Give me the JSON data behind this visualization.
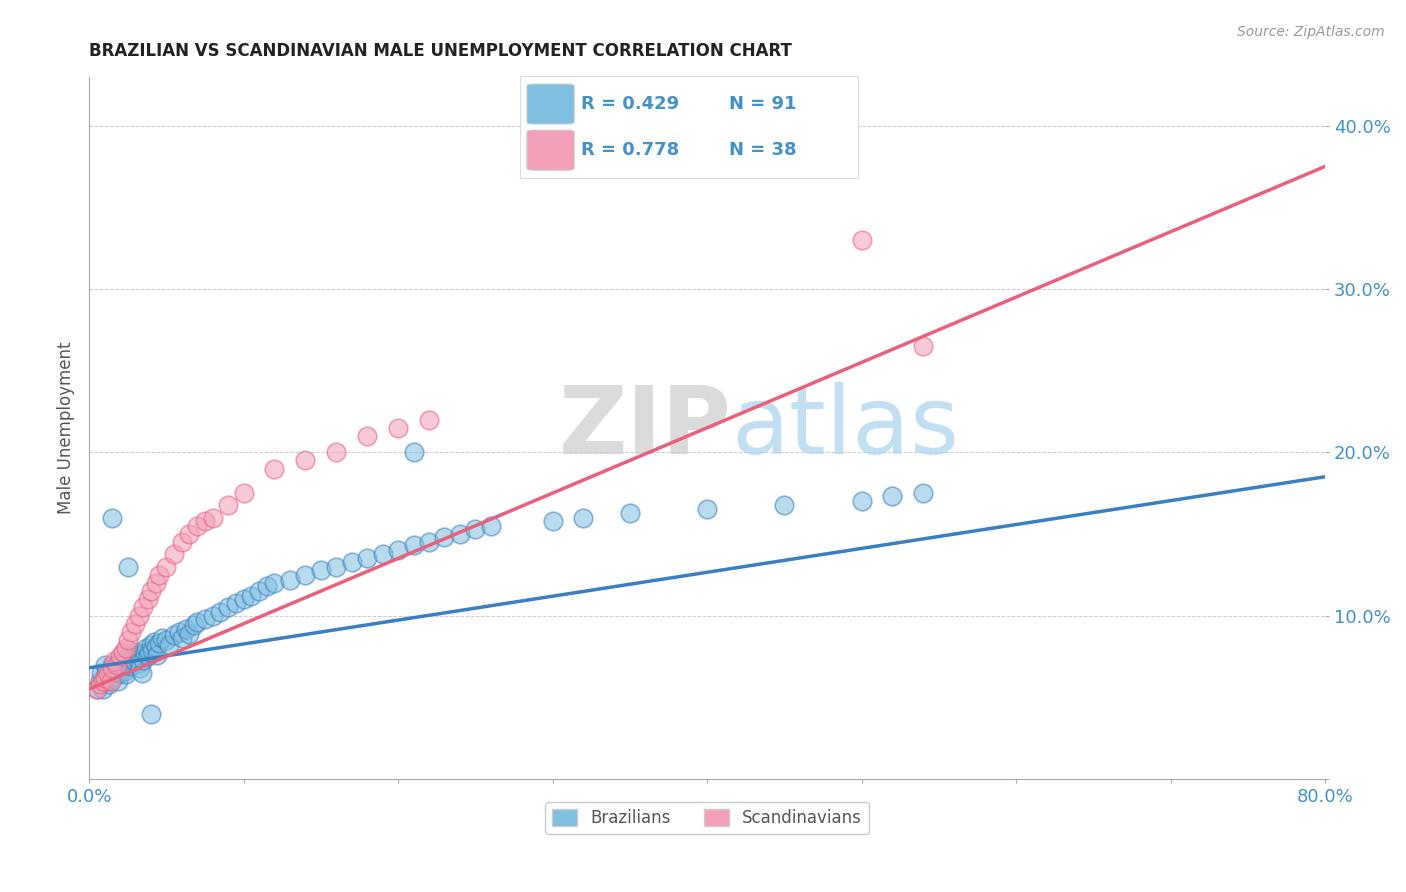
{
  "title": "BRAZILIAN VS SCANDINAVIAN MALE UNEMPLOYMENT CORRELATION CHART",
  "source": "Source: ZipAtlas.com",
  "ylabel": "Male Unemployment",
  "xlim": [
    0.0,
    0.8
  ],
  "ylim": [
    0.0,
    0.43
  ],
  "xticks": [
    0.0,
    0.1,
    0.2,
    0.3,
    0.4,
    0.5,
    0.6,
    0.7,
    0.8
  ],
  "xticklabels": [
    "0.0%",
    "",
    "",
    "",
    "",
    "",
    "",
    "",
    "80.0%"
  ],
  "yticks": [
    0.0,
    0.1,
    0.2,
    0.3,
    0.4
  ],
  "yticklabels": [
    "",
    "10.0%",
    "20.0%",
    "30.0%",
    "40.0%"
  ],
  "blue_color": "#7fbfdf",
  "pink_color": "#f4a0b8",
  "blue_line_color": "#3a7fc1",
  "pink_line_color": "#e8607a",
  "legend_r_blue": "R = 0.429",
  "legend_n_blue": "N = 91",
  "legend_r_pink": "R = 0.778",
  "legend_n_pink": "N = 38",
  "watermark_zip": "ZIP",
  "watermark_atlas": "atlas",
  "blue_scatter_x": [
    0.005,
    0.007,
    0.008,
    0.009,
    0.01,
    0.01,
    0.011,
    0.012,
    0.013,
    0.014,
    0.015,
    0.015,
    0.016,
    0.017,
    0.018,
    0.019,
    0.02,
    0.02,
    0.021,
    0.022,
    0.023,
    0.024,
    0.025,
    0.025,
    0.026,
    0.027,
    0.028,
    0.029,
    0.03,
    0.03,
    0.031,
    0.032,
    0.033,
    0.034,
    0.035,
    0.036,
    0.037,
    0.038,
    0.039,
    0.04,
    0.041,
    0.042,
    0.043,
    0.044,
    0.045,
    0.047,
    0.05,
    0.052,
    0.055,
    0.058,
    0.06,
    0.063,
    0.065,
    0.068,
    0.07,
    0.075,
    0.08,
    0.085,
    0.09,
    0.095,
    0.1,
    0.105,
    0.11,
    0.115,
    0.12,
    0.13,
    0.14,
    0.15,
    0.16,
    0.17,
    0.18,
    0.19,
    0.2,
    0.21,
    0.22,
    0.23,
    0.24,
    0.25,
    0.26,
    0.3,
    0.32,
    0.35,
    0.4,
    0.45,
    0.5,
    0.52,
    0.54,
    0.21,
    0.04,
    0.025,
    0.015
  ],
  "blue_scatter_y": [
    0.055,
    0.06,
    0.065,
    0.055,
    0.06,
    0.07,
    0.065,
    0.06,
    0.058,
    0.062,
    0.065,
    0.07,
    0.068,
    0.063,
    0.067,
    0.06,
    0.065,
    0.072,
    0.07,
    0.068,
    0.066,
    0.064,
    0.07,
    0.075,
    0.072,
    0.069,
    0.073,
    0.076,
    0.072,
    0.078,
    0.074,
    0.071,
    0.068,
    0.065,
    0.073,
    0.077,
    0.08,
    0.075,
    0.078,
    0.082,
    0.079,
    0.084,
    0.081,
    0.076,
    0.083,
    0.086,
    0.085,
    0.082,
    0.088,
    0.09,
    0.086,
    0.092,
    0.089,
    0.094,
    0.096,
    0.098,
    0.1,
    0.102,
    0.105,
    0.108,
    0.11,
    0.112,
    0.115,
    0.118,
    0.12,
    0.122,
    0.125,
    0.128,
    0.13,
    0.133,
    0.135,
    0.138,
    0.14,
    0.143,
    0.145,
    0.148,
    0.15,
    0.153,
    0.155,
    0.158,
    0.16,
    0.163,
    0.165,
    0.168,
    0.17,
    0.173,
    0.175,
    0.2,
    0.04,
    0.13,
    0.16
  ],
  "pink_scatter_x": [
    0.005,
    0.007,
    0.009,
    0.01,
    0.012,
    0.014,
    0.015,
    0.016,
    0.018,
    0.02,
    0.022,
    0.024,
    0.025,
    0.027,
    0.03,
    0.032,
    0.035,
    0.038,
    0.04,
    0.043,
    0.045,
    0.05,
    0.055,
    0.06,
    0.065,
    0.07,
    0.075,
    0.08,
    0.09,
    0.1,
    0.12,
    0.14,
    0.16,
    0.18,
    0.2,
    0.22,
    0.5,
    0.54
  ],
  "pink_scatter_y": [
    0.055,
    0.058,
    0.06,
    0.062,
    0.065,
    0.06,
    0.068,
    0.072,
    0.07,
    0.075,
    0.078,
    0.08,
    0.085,
    0.09,
    0.095,
    0.1,
    0.105,
    0.11,
    0.115,
    0.12,
    0.125,
    0.13,
    0.138,
    0.145,
    0.15,
    0.155,
    0.158,
    0.16,
    0.168,
    0.175,
    0.19,
    0.195,
    0.2,
    0.21,
    0.215,
    0.22,
    0.33,
    0.265
  ],
  "blue_trend_x": [
    0.0,
    0.8
  ],
  "blue_trend_y": [
    0.068,
    0.185
  ],
  "pink_trend_x": [
    0.0,
    0.8
  ],
  "pink_trend_y": [
    0.055,
    0.375
  ],
  "background_color": "#ffffff",
  "grid_color": "#cccccc",
  "title_color": "#222222",
  "axis_color": "#555555",
  "tick_color": "#4292c6"
}
